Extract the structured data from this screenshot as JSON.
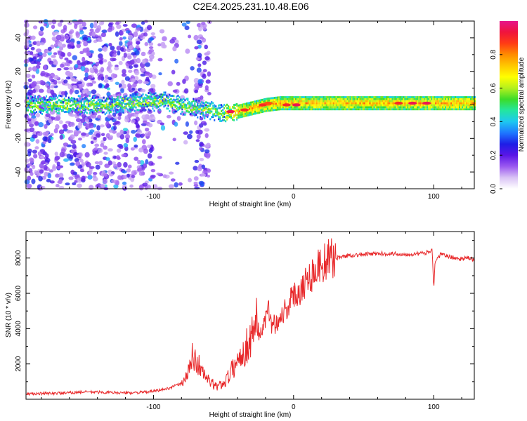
{
  "figure": {
    "title": "C2E4.2025.231.10.48.E06"
  },
  "chart_data": [
    {
      "type": "heatmap",
      "title": "C2E4.2025.231.10.48.E06",
      "xlabel": "Height of straight line (km)",
      "ylabel": "Frequency (Hz)",
      "xlim": [
        -191,
        129
      ],
      "ylim": [
        -50,
        50
      ],
      "x_ticks": [
        -100,
        0,
        100
      ],
      "y_ticks": [
        -40,
        -20,
        0,
        20,
        40
      ],
      "colorbar": {
        "label": "Normalized spectral amplitude",
        "range": [
          0,
          1
        ],
        "ticks": [
          "0.0",
          "0.2",
          "0.4",
          "0.6",
          "0.8"
        ],
        "colors": [
          "#ffffff",
          "#d9c2f5",
          "#9b59f0",
          "#5a16e6",
          "#1e1ee6",
          "#1e78ff",
          "#1ec8f0",
          "#23e6a0",
          "#3cdc28",
          "#b4f01e",
          "#ffff00",
          "#ffc800",
          "#ff8c00",
          "#ff3c14",
          "#f0143c",
          "#e6148c"
        ]
      },
      "ridge": [
        {
          "x": -191,
          "f": 0
        },
        {
          "x": -170,
          "f": 0
        },
        {
          "x": -150,
          "f": 0
        },
        {
          "x": -130,
          "f": 0
        },
        {
          "x": -110,
          "f": 2
        },
        {
          "x": -90,
          "f": 2
        },
        {
          "x": -80,
          "f": 0
        },
        {
          "x": -70,
          "f": -2
        },
        {
          "x": -60,
          "f": -3
        },
        {
          "x": -50,
          "f": -5
        },
        {
          "x": -40,
          "f": -4
        },
        {
          "x": -30,
          "f": -2
        },
        {
          "x": -20,
          "f": 0
        },
        {
          "x": -10,
          "f": 1
        },
        {
          "x": 0,
          "f": 1
        },
        {
          "x": 20,
          "f": 1
        },
        {
          "x": 40,
          "f": 1
        },
        {
          "x": 60,
          "f": 1
        },
        {
          "x": 80,
          "f": 1
        },
        {
          "x": 100,
          "f": 1
        },
        {
          "x": 129,
          "f": 1
        }
      ],
      "hotspots": [
        {
          "x": -45,
          "f": -4,
          "amp": 0.95
        },
        {
          "x": -35,
          "f": -3,
          "amp": 0.9
        },
        {
          "x": -22,
          "f": 0,
          "amp": 0.9
        },
        {
          "x": -18,
          "f": 1,
          "amp": 0.85
        },
        {
          "x": -5,
          "f": 0,
          "amp": 0.9
        },
        {
          "x": 2,
          "f": 0,
          "amp": 0.95
        },
        {
          "x": 75,
          "f": 1,
          "amp": 0.9
        },
        {
          "x": 85,
          "f": 1,
          "amp": 0.95
        },
        {
          "x": 95,
          "f": 1,
          "amp": 0.95
        }
      ]
    },
    {
      "type": "line",
      "xlabel": "Height of straight line (km)",
      "ylabel": "SNR (10 * v/v)",
      "xlim": [
        -191,
        129
      ],
      "ylim": [
        0,
        9500
      ],
      "x_ticks": [
        -100,
        0,
        100
      ],
      "y_ticks": [
        2000,
        4000,
        6000,
        8000
      ],
      "color": "#e8282a",
      "series": [
        {
          "x": [
            -191,
            -180,
            -170,
            -160,
            -150,
            -140,
            -130,
            -120,
            -110,
            -100,
            -90,
            -80,
            -75,
            -72,
            -70,
            -68,
            -65,
            -60,
            -55,
            -50,
            -45,
            -40,
            -35,
            -30,
            -28,
            -25,
            -22,
            -20,
            -18,
            -15,
            -10,
            -5,
            0,
            5,
            10,
            15,
            20,
            25,
            30,
            40,
            50,
            60,
            70,
            80,
            90,
            95,
            99,
            100,
            101,
            105,
            110,
            115,
            120,
            125,
            129
          ],
          "y": [
            300,
            320,
            340,
            360,
            420,
            400,
            380,
            360,
            380,
            450,
            600,
            900,
            1500,
            2500,
            2200,
            2000,
            1500,
            1000,
            700,
            900,
            1500,
            2200,
            2800,
            3500,
            5000,
            3700,
            4000,
            4500,
            5000,
            4200,
            4600,
            5200,
            5800,
            6300,
            6800,
            7300,
            7700,
            7900,
            8000,
            8150,
            8200,
            8250,
            8250,
            8200,
            8250,
            8300,
            8500,
            6200,
            7800,
            8200,
            8100,
            8000,
            7950,
            8000,
            7900
          ]
        }
      ]
    }
  ]
}
